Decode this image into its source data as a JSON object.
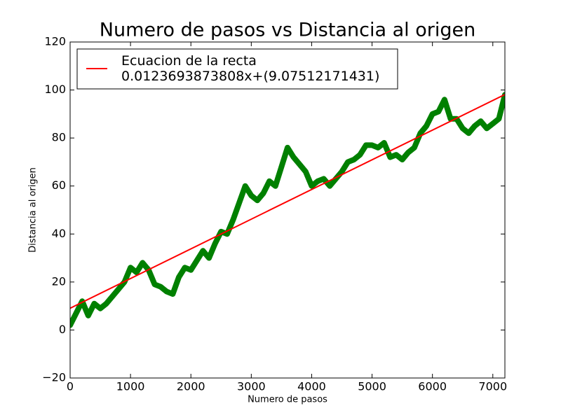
{
  "chart_data": {
    "type": "line",
    "title": "Numero de pasos vs Distancia al origen",
    "x_label": "Numero de pasos",
    "y_label": "Distancia al origen",
    "xlim": [
      0,
      7200
    ],
    "ylim": [
      -20,
      120
    ],
    "xticks": [
      0,
      1000,
      2000,
      3000,
      4000,
      5000,
      6000,
      7000
    ],
    "yticks": [
      {
        "value": -20,
        "label": "−20"
      },
      0,
      20,
      40,
      60,
      80,
      100,
      120
    ],
    "legend": "upper left",
    "series": [
      {
        "color": "#008000",
        "width": 8,
        "x": [
          0,
          100,
          200,
          300,
          400,
          500,
          600,
          700,
          800,
          900,
          1000,
          1100,
          1200,
          1300,
          1400,
          1500,
          1600,
          1700,
          1800,
          1900,
          2000,
          2100,
          2200,
          2300,
          2400,
          2500,
          2600,
          2700,
          2800,
          2900,
          3000,
          3100,
          3200,
          3300,
          3400,
          3500,
          3600,
          3700,
          3800,
          3900,
          4000,
          4100,
          4200,
          4300,
          4400,
          4500,
          4600,
          4700,
          4800,
          4900,
          5000,
          5100,
          5200,
          5300,
          5400,
          5500,
          5600,
          5700,
          5800,
          5900,
          6000,
          6100,
          6200,
          6300,
          6400,
          6500,
          6600,
          6700,
          6800,
          6900,
          7000,
          7100,
          7200
        ],
        "values": [
          2,
          7,
          12,
          6,
          11,
          9,
          11,
          14,
          17,
          20,
          26,
          24,
          28,
          25,
          19,
          18,
          16,
          15,
          22,
          26,
          25,
          29,
          33,
          30,
          36,
          41,
          40,
          46,
          53,
          60,
          56,
          54,
          57,
          62,
          60,
          68,
          76,
          72,
          69,
          66,
          60,
          62,
          63,
          60,
          63,
          66,
          70,
          71,
          73,
          77,
          77,
          76,
          78,
          72,
          73,
          71,
          74,
          76,
          82,
          85,
          90,
          91,
          96,
          88,
          88,
          84,
          82,
          85,
          87,
          84,
          86,
          88,
          98
        ]
      },
      {
        "name": "Ecuacion de la recta\n0.0123693873808x+(9.07512171431)",
        "color": "#ff0000",
        "width": 2,
        "x": [
          0,
          7200
        ],
        "values": [
          9.075,
          98.135
        ]
      }
    ]
  }
}
